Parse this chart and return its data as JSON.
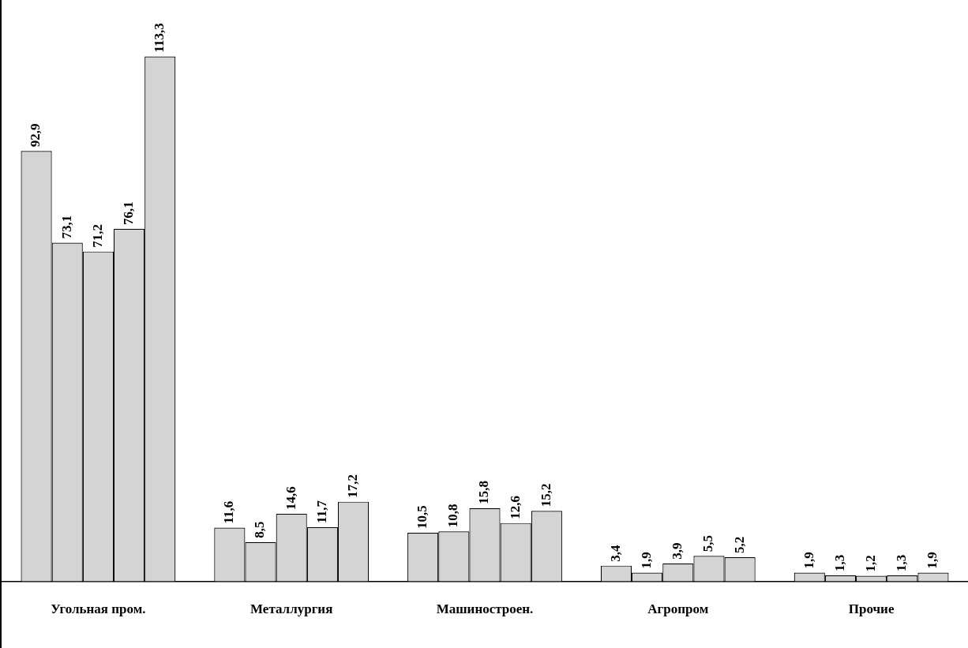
{
  "chart_data": {
    "type": "bar",
    "categories": [
      "Угольная пром.",
      "Металлургия",
      "Машиностроен.",
      "Агропром",
      "Прочие"
    ],
    "series": [
      {
        "color": "#d4d4d4",
        "values": [
          92.9,
          11.6,
          10.5,
          3.4,
          1.9
        ],
        "value_labels": [
          "92,9",
          "11,6",
          "10,5",
          "3,4",
          "1,9"
        ]
      },
      {
        "color": "#d4d4d4",
        "values": [
          73.1,
          8.5,
          10.8,
          1.9,
          1.3
        ],
        "value_labels": [
          "73,1",
          "8,5",
          "10,8",
          "1,9",
          "1,3"
        ]
      },
      {
        "color": "#d4d4d4",
        "values": [
          71.2,
          14.6,
          15.8,
          3.9,
          1.2
        ],
        "value_labels": [
          "71,2",
          "14,6",
          "15,8",
          "3,9",
          "1,2"
        ]
      },
      {
        "color": "#d4d4d4",
        "values": [
          76.1,
          11.7,
          12.6,
          5.5,
          1.3
        ],
        "value_labels": [
          "76,1",
          "11,7",
          "12,6",
          "5,5",
          "1,3"
        ]
      },
      {
        "color": "#d4d4d4",
        "values": [
          113.3,
          17.2,
          15.2,
          5.2,
          1.9
        ],
        "value_labels": [
          "113,3",
          "17,2",
          "15,2",
          "5,2",
          "1,9"
        ]
      }
    ],
    "grid": false,
    "legend": false
  }
}
